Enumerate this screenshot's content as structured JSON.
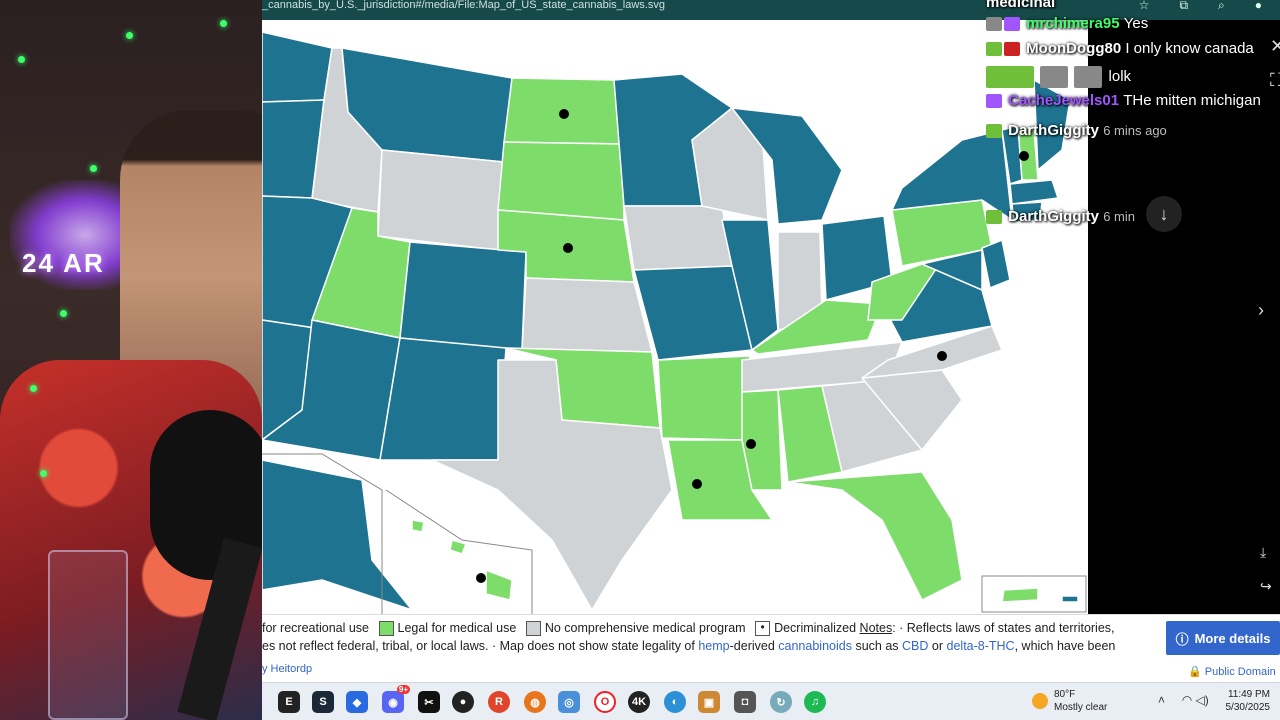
{
  "browser": {
    "url_fragment": "_cannabis_by_U.S._jurisdiction#/media/File:Map_of_US_state_cannabis_laws.svg"
  },
  "colors": {
    "recreational": "#1e7390",
    "medical": "#7ddc6a",
    "none": "#cfd3d6",
    "border": "#ffffff"
  },
  "chat": {
    "messages": [
      {
        "user": "medicinal",
        "text": "",
        "user_color": "#ffffff"
      },
      {
        "user": "mrchimera95",
        "text": "Yes",
        "user_color": "#3dff6a"
      },
      {
        "user": "MoonDogg80",
        "text": "I only know canada",
        "user_color": "#ffffff"
      },
      {
        "user": "",
        "text": "lolk",
        "user_color": "#ffffff"
      },
      {
        "user": "CacheJewels01",
        "text": "THe mitten michigan",
        "user_color": "#a055ff"
      },
      {
        "user": "DarthGiggity",
        "text": "6 mins ago",
        "user_color": "#ffffff"
      },
      {
        "user": "DarthGiggity",
        "text": "6 min",
        "user_color": "#ffffff"
      }
    ]
  },
  "caption": {
    "line1_prefix": "for recreational use",
    "medical_label": "Legal for medical use",
    "none_label": "No comprehensive medical program",
    "decrim_label": "Decriminalized",
    "notes_label": "Notes",
    "notes_text": ": · Reflects laws of states and territories,",
    "line2_a": "es not reflect federal, tribal, or local laws. · Map does not show state legality of",
    "hemp": "hemp",
    "derived": "-derived",
    "cannabinoids": "cannabinoids",
    "such_as": "such as",
    "cbd": "CBD",
    "or": "or",
    "d8": "delta-8-THC",
    "tail": ", which have been",
    "author": "y Heitordp",
    "more_details": "More details",
    "public_domain": "Public Domain"
  },
  "taskbar": {
    "temp": "80°F",
    "weather": "Mostly clear",
    "time": "11:49 PM",
    "date": "5/30/2025",
    "discord_badge": "9+"
  }
}
